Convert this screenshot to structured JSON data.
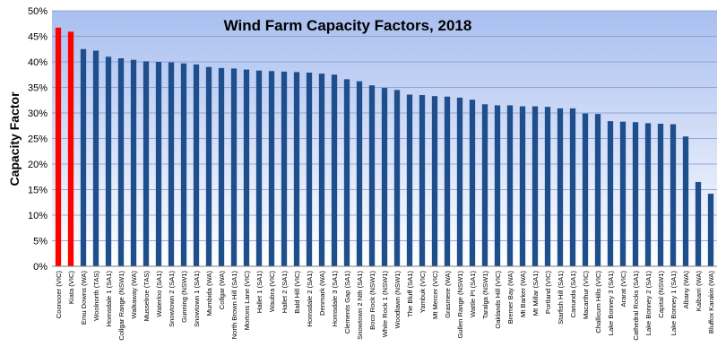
{
  "chart_data": {
    "type": "bar",
    "title": "Wind Farm Capacity Factors, 2018",
    "ylabel": "Capacity Factor",
    "xlabel": "",
    "ylim": [
      0,
      0.5
    ],
    "ytick_step": 0.05,
    "ytick_labels": [
      "0%",
      "5%",
      "10%",
      "15%",
      "20%",
      "25%",
      "30%",
      "35%",
      "40%",
      "45%",
      "50%"
    ],
    "grid": true,
    "colors": {
      "highlight": "#ff0000",
      "bar": "#1f4e8c",
      "plot_bg_top": "#a9bff0",
      "plot_bg_bottom": "#ffffff",
      "grid": "#7f95c8"
    },
    "categories": [
      "Coonooer (VIC)",
      "Kiata (VIC)",
      "Emu Downs (WA)",
      "Woolnorth (TAS)",
      "Hornsdale 1 (SA1)",
      "Collgar Range (NSW1)",
      "Walkaway (WA)",
      "Musselroe (TAS)",
      "Waterloo (SA1)",
      "Snowtown 2 (SA1)",
      "Gunning (NSW1)",
      "Snowtown 1 (SA1)",
      "Mumbida (WA)",
      "Collgar (WA)",
      "North Brown Hill (SA1)",
      "Mortons Lane (VIC)",
      "Hallet 1 (SA1)",
      "Waubra (VIC)",
      "Hallet 2 (SA1)",
      "Bald Hill (VIC)",
      "Hornsdale 2 (SA1)",
      "Denmark (WA)",
      "Hornsdale 3 (SA1)",
      "Clements Gap (SA1)",
      "Snowtown 2 Nth (SA1)",
      "Boco Rock (NSW1)",
      "White Rock 1 (NSW1)",
      "Woodlawn (NSW1)",
      "The Bluff (SA1)",
      "Yambuk (VIC)",
      "Mt Mercer (VIC)",
      "Grasmere (WA)",
      "Gullen Range (NSW1)",
      "Wattle Pt (SA1)",
      "Taralga (NSW1)",
      "Oaklands Hill (VIC)",
      "Bremer Bay (WA)",
      "Mt Barker (WA)",
      "Mt Millar (SA1)",
      "Portland (VIC)",
      "Starfish Hill (SA1)",
      "Canunda (SA1)",
      "Macarthur (VIC)",
      "Challicum Hills (VIC)",
      "Lake Bonney 3 (SA1)",
      "Ararat (VIC)",
      "Cathedral Rocks (SA1)",
      "Lake Bonney 2 (SA1)",
      "Capital (NSW1)",
      "Lake Bonney 1 (SA1)",
      "Albany (WA)",
      "Kalbarri (WA)",
      "Bluffox Karakin (WA)"
    ],
    "values": [
      0.467,
      0.459,
      0.425,
      0.422,
      0.41,
      0.407,
      0.404,
      0.401,
      0.4,
      0.399,
      0.397,
      0.395,
      0.39,
      0.388,
      0.387,
      0.385,
      0.383,
      0.382,
      0.381,
      0.38,
      0.379,
      0.377,
      0.375,
      0.366,
      0.362,
      0.354,
      0.349,
      0.345,
      0.336,
      0.335,
      0.333,
      0.332,
      0.33,
      0.326,
      0.317,
      0.315,
      0.315,
      0.313,
      0.313,
      0.312,
      0.309,
      0.309,
      0.299,
      0.298,
      0.284,
      0.283,
      0.282,
      0.28,
      0.279,
      0.278,
      0.254,
      0.165,
      0.142
    ],
    "highlighted_categories": [
      "Coonooer (VIC)",
      "Kiata (VIC)"
    ]
  }
}
